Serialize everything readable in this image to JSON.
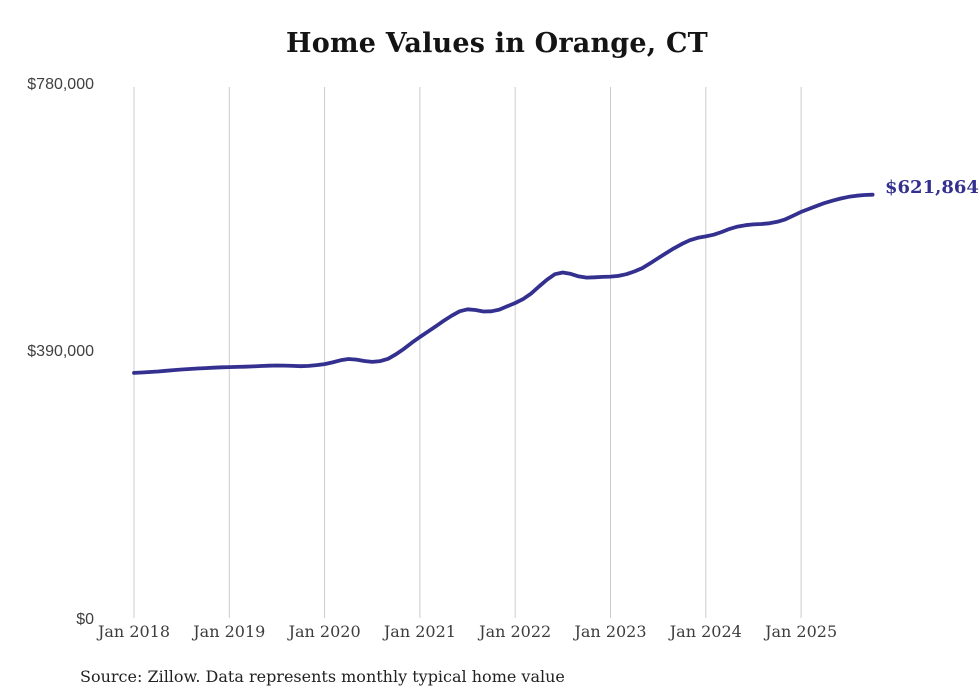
{
  "page": {
    "background": "#ffffff"
  },
  "chart_data": {
    "type": "line",
    "title": "Home Values in Orange, CT",
    "source": "Source: Zillow. Data represents monthly typical home value",
    "end_label": "$621,864",
    "last_value": 621864,
    "line_color": "#34308f",
    "gridline_color": "#cccccc",
    "ylim": [
      0,
      780000
    ],
    "grid": "vertical-only",
    "legend": "none",
    "y_ticks": [
      {
        "label": "$780,000",
        "value": 780000
      },
      {
        "label": "$390,000",
        "value": 390000
      },
      {
        "label": "$0",
        "value": 0
      }
    ],
    "x_ticks": [
      "Jan 2018",
      "Jan 2019",
      "Jan 2020",
      "Jan 2021",
      "Jan 2022",
      "Jan 2023",
      "Jan 2024",
      "Jan 2025"
    ],
    "x_start_month": "2018-01",
    "x_end_month": "2025-10",
    "points_per_year": 12,
    "series": [
      {
        "name": "Typical home value",
        "unit": "USD",
        "values": [
          360000,
          360600,
          361300,
          362100,
          363100,
          364100,
          365000,
          365800,
          366500,
          367100,
          367700,
          368200,
          368600,
          368900,
          369200,
          369600,
          370100,
          370600,
          370900,
          370700,
          370300,
          369900,
          370300,
          371500,
          373000,
          375500,
          378500,
          380500,
          379500,
          377500,
          376200,
          377300,
          380800,
          387500,
          395500,
          404500,
          412800,
          420500,
          428500,
          436500,
          444000,
          450500,
          453500,
          452500,
          450200,
          450500,
          453000,
          457800,
          462700,
          468500,
          476500,
          487000,
          497000,
          505000,
          507500,
          505500,
          501800,
          500000,
          500500,
          501000,
          501500,
          502500,
          505000,
          509000,
          514000,
          521000,
          528500,
          536000,
          543000,
          549500,
          555000,
          558500,
          560500,
          563000,
          567000,
          571500,
          575000,
          577000,
          578200,
          578800,
          579800,
          582000,
          585500,
          591000,
          596500,
          601000,
          605500,
          609700,
          613200,
          616200,
          618700,
          620300,
          621300,
          621864
        ]
      }
    ]
  }
}
